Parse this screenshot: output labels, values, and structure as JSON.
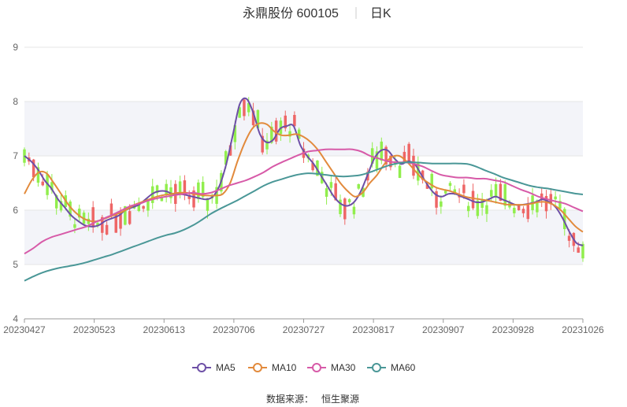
{
  "header": {
    "title": "永鼎股份 600105",
    "period": "日K"
  },
  "source": {
    "label": "数据来源：",
    "name": "恒生聚源"
  },
  "colors": {
    "up": "#ee6666",
    "down": "#91ee4d",
    "ma5": "#6d4fa6",
    "ma10": "#e28a3c",
    "ma30": "#d75aa8",
    "ma60": "#4a9797",
    "band": "#f3f4f9",
    "grid": "#e6e6e6"
  },
  "chart_data": {
    "type": "candlestick",
    "title": "永鼎股份 600105",
    "subtitle": "日K",
    "ylim": [
      4,
      9
    ],
    "yticks": [
      "4",
      "5",
      "6",
      "7",
      "8",
      "9"
    ],
    "xticks": [
      "20230427",
      "20230523",
      "20230613",
      "20230706",
      "20230727",
      "20230817",
      "20230907",
      "20230928",
      "20231026"
    ],
    "legend_position": "bottom",
    "series": [
      {
        "name": "MA5",
        "key": "ma5",
        "values": [
          7.0,
          6.9,
          6.75,
          6.55,
          6.4,
          6.2,
          6.05,
          5.9,
          5.8,
          5.72,
          5.7,
          5.72,
          5.8,
          5.85,
          5.9,
          6.0,
          6.05,
          6.1,
          6.2,
          6.3,
          6.35,
          6.35,
          6.3,
          6.3,
          6.28,
          6.25,
          6.22,
          6.2,
          6.25,
          6.45,
          6.85,
          7.4,
          7.95,
          8.05,
          7.8,
          7.4,
          7.25,
          7.3,
          7.5,
          7.55,
          7.55,
          7.2,
          7.0,
          6.85,
          6.65,
          6.45,
          6.25,
          6.12,
          6.08,
          6.15,
          6.35,
          6.65,
          6.95,
          7.1,
          7.1,
          6.95,
          6.85,
          6.9,
          6.85,
          6.65,
          6.45,
          6.3,
          6.25,
          6.3,
          6.3,
          6.25,
          6.2,
          6.15,
          6.15,
          6.2,
          6.25,
          6.2,
          6.15,
          6.1,
          6.1,
          6.12,
          6.15,
          6.2,
          6.15,
          6.05,
          5.85,
          5.6,
          5.4,
          5.35
        ]
      },
      {
        "name": "MA10",
        "key": "ma10",
        "values": [
          6.3,
          6.55,
          6.7,
          6.68,
          6.5,
          6.3,
          6.1,
          5.95,
          5.85,
          5.8,
          5.8,
          5.85,
          5.9,
          5.95,
          6.02,
          6.1,
          6.15,
          6.2,
          6.25,
          6.28,
          6.3,
          6.32,
          6.32,
          6.3,
          6.28,
          6.27,
          6.27,
          6.3,
          6.5,
          6.9,
          7.25,
          7.5,
          7.6,
          7.58,
          7.45,
          7.38,
          7.38,
          7.4,
          7.35,
          7.25,
          7.1,
          6.9,
          6.7,
          6.5,
          6.35,
          6.25,
          6.32,
          6.5,
          6.65,
          6.85,
          6.98,
          7.0,
          6.9,
          6.75,
          6.6,
          6.5,
          6.42,
          6.38,
          6.35,
          6.3,
          6.25,
          6.22,
          6.2,
          6.18,
          6.15,
          6.12,
          6.1,
          6.1,
          6.1,
          6.12,
          6.15,
          6.15,
          6.1,
          6.0,
          5.85,
          5.7,
          5.6
        ]
      },
      {
        "name": "MA30",
        "key": "ma30",
        "values": [
          5.2,
          5.3,
          5.42,
          5.5,
          5.55,
          5.6,
          5.65,
          5.7,
          5.78,
          5.85,
          5.92,
          6.0,
          6.08,
          6.12,
          6.18,
          6.22,
          6.25,
          6.28,
          6.3,
          6.32,
          6.3,
          6.32,
          6.38,
          6.45,
          6.5,
          6.55,
          6.62,
          6.7,
          6.8,
          6.88,
          6.95,
          7.02,
          7.08,
          7.1,
          7.12,
          7.12,
          7.12,
          7.12,
          7.08,
          7.0,
          6.95,
          6.9,
          6.88,
          6.88,
          6.85,
          6.8,
          6.72,
          6.65,
          6.62,
          6.6,
          6.6,
          6.58,
          6.58,
          6.55,
          6.52,
          6.45,
          6.38,
          6.32,
          6.25,
          6.2,
          6.16,
          6.12,
          6.05,
          5.98
        ]
      },
      {
        "name": "MA60",
        "key": "ma60",
        "values": [
          4.7,
          4.78,
          4.85,
          4.9,
          4.94,
          4.97,
          5.0,
          5.04,
          5.09,
          5.14,
          5.19,
          5.25,
          5.31,
          5.37,
          5.43,
          5.49,
          5.54,
          5.58,
          5.64,
          5.72,
          5.82,
          5.93,
          6.02,
          6.1,
          6.18,
          6.27,
          6.36,
          6.45,
          6.52,
          6.57,
          6.62,
          6.66,
          6.68,
          6.67,
          6.65,
          6.63,
          6.62,
          6.63,
          6.65,
          6.7,
          6.76,
          6.82,
          6.86,
          6.88,
          6.88,
          6.87,
          6.86,
          6.86,
          6.86,
          6.86,
          6.85,
          6.8,
          6.73,
          6.67,
          6.6,
          6.55,
          6.5,
          6.45,
          6.42,
          6.4,
          6.37,
          6.34,
          6.31,
          6.29
        ]
      }
    ]
  }
}
